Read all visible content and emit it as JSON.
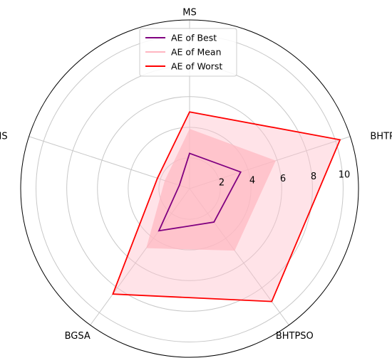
{
  "chart_data": {
    "type": "radar",
    "categories": [
      "MS",
      "BHTPSO-QI",
      "BHTPSO",
      "BGSA",
      "HLMS"
    ],
    "rlim": [
      0,
      11
    ],
    "r_ticks": [
      2,
      4,
      6,
      8,
      10
    ],
    "r_tick_labels": [
      "2",
      "4",
      "6",
      "8",
      "10"
    ],
    "grid": true,
    "legend_position": "top-center",
    "series": [
      {
        "name": "AE of Best",
        "values": [
          2.3,
          3.5,
          2.7,
          3.4,
          0.7
        ],
        "color": "#800080",
        "fill": false
      },
      {
        "name": "AE of Mean",
        "values": [
          3.9,
          5.9,
          5.0,
          4.8,
          1.7
        ],
        "color": "#ffb6c1",
        "fill": true,
        "fill_opacity": 0.7
      },
      {
        "name": "AE of Worst",
        "values": [
          5.0,
          10.3,
          9.1,
          8.5,
          2.2
        ],
        "color": "#ff0000",
        "fill": true,
        "fill_color": "#ffc0cb",
        "fill_opacity": 0.45
      }
    ]
  }
}
